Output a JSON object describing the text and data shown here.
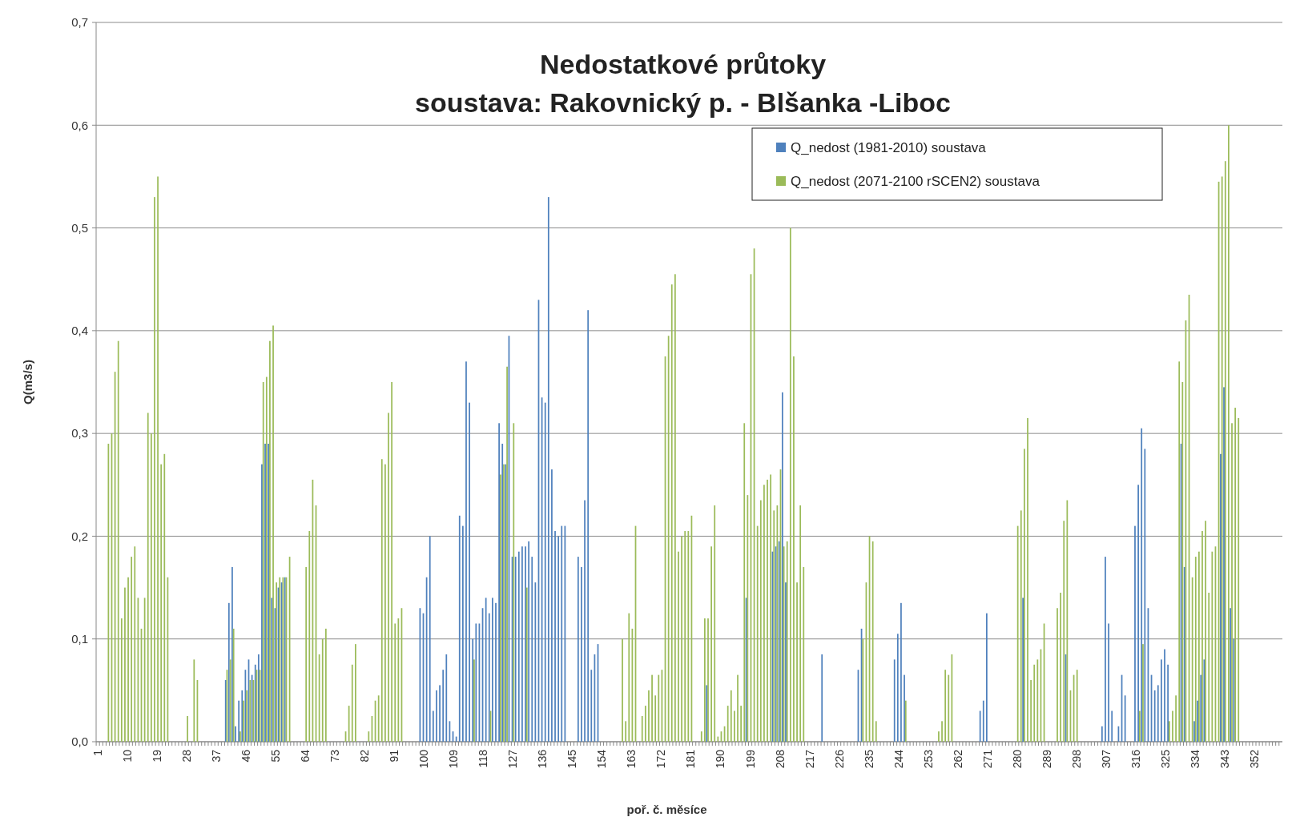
{
  "chart_data": {
    "type": "bar",
    "title": "Nedostatkové průtoky",
    "subtitle": "soustava: Rakovnický p. - Blšanka -Liboc",
    "xlabel": "poř. č. měsíce",
    "ylabel": "Q(m3/s)",
    "categories": [
      "1",
      null,
      null,
      null,
      null,
      null,
      null,
      null,
      null,
      "10",
      null,
      null,
      null,
      null,
      null,
      null,
      null,
      null,
      "19",
      null,
      null,
      null,
      null,
      null,
      null,
      null,
      null,
      "28",
      null,
      null,
      null,
      null,
      null,
      null,
      null,
      null,
      "37",
      null,
      null,
      null,
      null,
      null,
      null,
      null,
      null,
      "46",
      null,
      null,
      null,
      null,
      null,
      null,
      null,
      null,
      "55",
      null,
      null,
      null,
      null,
      null,
      null,
      null,
      null,
      "64",
      null,
      null,
      null,
      null,
      null,
      null,
      null,
      null,
      "73",
      null,
      null,
      null,
      null,
      null,
      null,
      null,
      null,
      "82",
      null,
      null,
      null,
      null,
      null,
      null,
      null,
      null,
      "91",
      null,
      null,
      null,
      null,
      null,
      null,
      null,
      null,
      "100",
      null,
      null,
      null,
      null,
      null,
      null,
      null,
      null,
      "109",
      null,
      null,
      null,
      null,
      null,
      null,
      null,
      null,
      "118",
      null,
      null,
      null,
      null,
      null,
      null,
      null,
      null,
      "127",
      null,
      null,
      null,
      null,
      null,
      null,
      null,
      null,
      "136",
      null,
      null,
      null,
      null,
      null,
      null,
      null,
      null,
      "145",
      null,
      null,
      null,
      null,
      null,
      null,
      null,
      null,
      "154",
      null,
      null,
      null,
      null,
      null,
      null,
      null,
      null,
      "163",
      null,
      null,
      null,
      null,
      null,
      null,
      null,
      null,
      "172",
      null,
      null,
      null,
      null,
      null,
      null,
      null,
      null,
      "181",
      null,
      null,
      null,
      null,
      null,
      null,
      null,
      null,
      "190",
      null,
      null,
      null,
      null,
      null,
      null,
      null,
      null,
      "199",
      null,
      null,
      null,
      null,
      null,
      null,
      null,
      null,
      "208",
      null,
      null,
      null,
      null,
      null,
      null,
      null,
      null,
      "217",
      null,
      null,
      null,
      null,
      null,
      null,
      null,
      null,
      "226",
      null,
      null,
      null,
      null,
      null,
      null,
      null,
      null,
      "235",
      null,
      null,
      null,
      null,
      null,
      null,
      null,
      null,
      "244",
      null,
      null,
      null,
      null,
      null,
      null,
      null,
      null,
      "253",
      null,
      null,
      null,
      null,
      null,
      null,
      null,
      null,
      "262",
      null,
      null,
      null,
      null,
      null,
      null,
      null,
      null,
      "271",
      null,
      null,
      null,
      null,
      null,
      null,
      null,
      null,
      "280",
      null,
      null,
      null,
      null,
      null,
      null,
      null,
      null,
      "289",
      null,
      null,
      null,
      null,
      null,
      null,
      null,
      null,
      "298",
      null,
      null,
      null,
      null,
      null,
      null,
      null,
      null,
      "307",
      null,
      null,
      null,
      null,
      null,
      null,
      null,
      null,
      "316",
      null,
      null,
      null,
      null,
      null,
      null,
      null,
      null,
      "325",
      null,
      null,
      null,
      null,
      null,
      null,
      null,
      null,
      "334",
      null,
      null,
      null,
      null,
      null,
      null,
      null,
      null,
      "343",
      null,
      null,
      null,
      null,
      null,
      null,
      null,
      null,
      "352",
      null,
      null,
      null,
      null,
      null,
      null,
      null,
      null
    ],
    "series": [
      {
        "name": "Q_nedost (1981-2010) soustava",
        "color": "#4f81bd",
        "values": [
          0,
          0,
          0,
          0,
          0,
          0,
          0,
          0,
          0,
          0,
          0,
          0,
          0,
          0,
          0,
          0,
          0,
          0,
          0,
          0,
          0,
          0,
          0,
          0,
          0,
          0,
          0,
          0,
          0,
          0,
          0,
          0,
          0,
          0,
          0,
          0,
          0,
          0,
          0,
          0.06,
          0.135,
          0.17,
          0.015,
          0.04,
          0.05,
          0.07,
          0.08,
          0.065,
          0.075,
          0.085,
          0.27,
          0.29,
          0.29,
          0.14,
          0.13,
          0.15,
          0.155,
          0.16,
          0,
          0,
          0,
          0,
          0,
          0,
          0,
          0,
          0,
          0,
          0,
          0,
          0,
          0,
          0,
          0,
          0,
          0,
          0,
          0,
          0,
          0,
          0,
          0,
          0,
          0,
          0,
          0,
          0,
          0,
          0,
          0,
          0,
          0,
          0,
          0,
          0,
          0,
          0,
          0,
          0.13,
          0.125,
          0.16,
          0.2,
          0.03,
          0.05,
          0.055,
          0.07,
          0.085,
          0.02,
          0.01,
          0.005,
          0.22,
          0.21,
          0.37,
          0.33,
          0.1,
          0.115,
          0.115,
          0.13,
          0.14,
          0.125,
          0.14,
          0.135,
          0.31,
          0.29,
          0.27,
          0.395,
          0.18,
          0.18,
          0.185,
          0.19,
          0.19,
          0.195,
          0.18,
          0.155,
          0.43,
          0.335,
          0.33,
          0.53,
          0.265,
          0.205,
          0.2,
          0.21,
          0.21,
          0,
          0,
          0,
          0.18,
          0.17,
          0.235,
          0.42,
          0.07,
          0.085,
          0.095,
          0,
          0,
          0,
          0,
          0,
          0,
          0,
          0,
          0,
          0,
          0,
          0,
          0,
          0,
          0,
          0,
          0,
          0,
          0,
          0,
          0,
          0,
          0,
          0,
          0,
          0,
          0,
          0,
          0,
          0,
          0,
          0,
          0.055,
          0,
          0,
          0,
          0,
          0,
          0,
          0,
          0,
          0,
          0,
          0,
          0.14,
          0,
          0,
          0,
          0,
          0,
          0,
          0,
          0.185,
          0.19,
          0.195,
          0.34,
          0.155,
          0,
          0,
          0,
          0,
          0,
          0,
          0,
          0,
          0,
          0,
          0.085,
          0,
          0,
          0,
          0,
          0,
          0,
          0,
          0,
          0,
          0,
          0.07,
          0.11,
          0,
          0,
          0,
          0,
          0,
          0,
          0,
          0,
          0,
          0.08,
          0.105,
          0.135,
          0.065,
          0,
          0,
          0,
          0,
          0,
          0,
          0,
          0,
          0,
          0,
          0,
          0,
          0,
          0,
          0,
          0,
          0,
          0,
          0,
          0,
          0,
          0,
          0.03,
          0.04,
          0.125,
          0,
          0,
          0,
          0,
          0,
          0,
          0,
          0,
          0,
          0,
          0.14,
          0,
          0,
          0,
          0,
          0,
          0,
          0,
          0,
          0,
          0,
          0,
          0,
          0.085,
          0,
          0,
          0,
          0,
          0,
          0,
          0,
          0,
          0,
          0,
          0.015,
          0.18,
          0.115,
          0.03,
          0,
          0.015,
          0.065,
          0.045,
          0,
          0,
          0.21,
          0.25,
          0.305,
          0.285,
          0.13,
          0.065,
          0.05,
          0.055,
          0.08,
          0.09,
          0.075,
          0,
          0,
          0,
          0.29,
          0.17,
          0,
          0,
          0.02,
          0.04,
          0.065,
          0.08,
          0,
          0,
          0,
          0,
          0.28,
          0.345,
          0,
          0.13,
          0.1,
          0,
          0,
          0,
          0,
          0,
          0,
          0,
          0,
          0,
          0,
          0,
          0,
          0,
          0
        ]
      },
      {
        "name": "Q_nedost (2071-2100 rSCEN2) soustava",
        "color": "#9bbb59",
        "values": [
          0,
          0,
          0,
          0.29,
          0.3,
          0.36,
          0.39,
          0.12,
          0.15,
          0.16,
          0.18,
          0.19,
          0.14,
          0.11,
          0.14,
          0.32,
          0.3,
          0.53,
          0.55,
          0.27,
          0.28,
          0.16,
          0,
          0,
          0,
          0,
          0,
          0.025,
          0,
          0.08,
          0.06,
          0,
          0,
          0,
          0,
          0,
          0,
          0,
          0,
          0.07,
          0.08,
          0.11,
          0,
          0.01,
          0.04,
          0.05,
          0.06,
          0.06,
          0.07,
          0.07,
          0.35,
          0.355,
          0.39,
          0.405,
          0.155,
          0.16,
          0.16,
          0.16,
          0.18,
          0,
          0,
          0,
          0,
          0.17,
          0.205,
          0.255,
          0.23,
          0.085,
          0.1,
          0.11,
          0,
          0,
          0,
          0,
          0,
          0.01,
          0.035,
          0.075,
          0.095,
          0,
          0,
          0,
          0.01,
          0.025,
          0.04,
          0.045,
          0.275,
          0.27,
          0.32,
          0.35,
          0.115,
          0.12,
          0.13,
          0,
          0,
          0,
          0,
          0,
          0,
          0,
          0,
          0,
          0,
          0,
          0,
          0,
          0,
          0,
          0,
          0,
          0,
          0,
          0,
          0,
          0.08,
          0,
          0,
          0,
          0,
          0.03,
          0,
          0,
          0.26,
          0.27,
          0.365,
          0,
          0.31,
          0,
          0,
          0,
          0.15,
          0,
          0,
          0,
          0,
          0,
          0,
          0,
          0,
          0,
          0,
          0,
          0,
          0,
          0,
          0,
          0,
          0,
          0,
          0,
          0,
          0,
          0,
          0,
          0,
          0,
          0,
          0,
          0,
          0.1,
          0.02,
          0.125,
          0.11,
          0.21,
          0,
          0.025,
          0.035,
          0.05,
          0.065,
          0.045,
          0.065,
          0.07,
          0.375,
          0.395,
          0.445,
          0.455,
          0.185,
          0.2,
          0.205,
          0.205,
          0.22,
          0,
          0,
          0.01,
          0.12,
          0.12,
          0.19,
          0.23,
          0.005,
          0.01,
          0.015,
          0.035,
          0.05,
          0.03,
          0.065,
          0.035,
          0.31,
          0.24,
          0.455,
          0.48,
          0.21,
          0.235,
          0.25,
          0.255,
          0.26,
          0.225,
          0.23,
          0.265,
          0.19,
          0.195,
          0.5,
          0.375,
          0.155,
          0.23,
          0.17,
          0,
          0,
          0,
          0,
          0,
          0,
          0,
          0,
          0,
          0,
          0,
          0,
          0,
          0,
          0,
          0,
          0,
          0.1,
          0.155,
          0.2,
          0.195,
          0.02,
          0,
          0,
          0,
          0,
          0,
          0,
          0,
          0,
          0.04,
          0,
          0,
          0,
          0,
          0,
          0,
          0,
          0,
          0,
          0.01,
          0.02,
          0.07,
          0.065,
          0.085,
          0,
          0,
          0,
          0,
          0,
          0,
          0,
          0,
          0,
          0,
          0,
          0,
          0,
          0,
          0,
          0,
          0,
          0,
          0,
          0.21,
          0.225,
          0.285,
          0.315,
          0.06,
          0.075,
          0.08,
          0.09,
          0.115,
          0,
          0,
          0,
          0.13,
          0.145,
          0.215,
          0.235,
          0.05,
          0.065,
          0.07,
          0,
          0,
          0,
          0,
          0,
          0,
          0,
          0,
          0,
          0,
          0,
          0,
          0,
          0,
          0,
          0,
          0,
          0,
          0.03,
          0.095,
          0,
          0,
          0,
          0,
          0,
          0,
          0,
          0.02,
          0.03,
          0.045,
          0.37,
          0.35,
          0.41,
          0.435,
          0.16,
          0.18,
          0.185,
          0.205,
          0.215,
          0.145,
          0.185,
          0.19,
          0.545,
          0.55,
          0.565,
          0.6,
          0.31,
          0.325,
          0.315,
          0,
          0,
          0,
          0,
          0,
          0,
          0,
          0,
          0,
          0,
          0,
          0,
          0
        ]
      }
    ],
    "ylim": [
      0,
      0.7
    ],
    "yticks": [
      {
        "value": 0,
        "label": "0,0"
      },
      {
        "value": 0.1,
        "label": "0,1"
      },
      {
        "value": 0.2,
        "label": "0,2"
      },
      {
        "value": 0.3,
        "label": "0,3"
      },
      {
        "value": 0.4,
        "label": "0,4"
      },
      {
        "value": 0.5,
        "label": "0,5"
      },
      {
        "value": 0.6,
        "label": "0,6"
      },
      {
        "value": 0.7,
        "label": "0,7"
      }
    ],
    "grid": "y",
    "legend": "top right"
  }
}
